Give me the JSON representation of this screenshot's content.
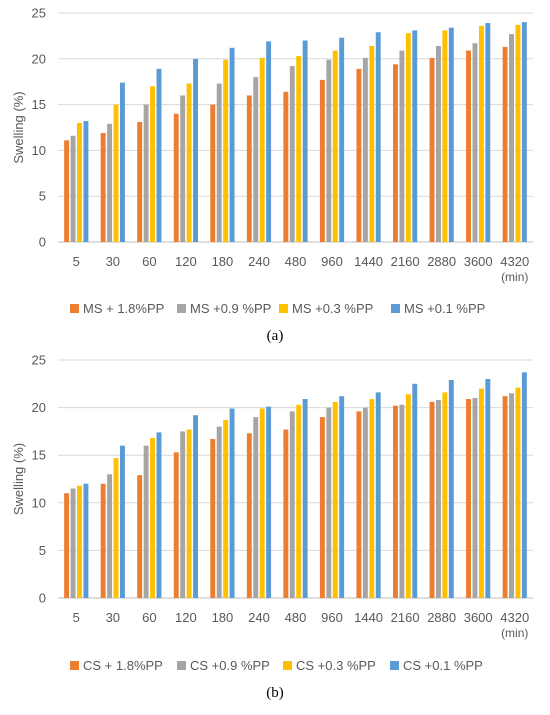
{
  "panels": [
    {
      "caption": "(a)",
      "chart_data": {
        "type": "bar",
        "ylabel": "Swelling (%)",
        "x_unit": "(min)",
        "ylim": [
          0,
          25
        ],
        "yticks": [
          0,
          5,
          10,
          15,
          20,
          25
        ],
        "grid": true,
        "legend_position": "bottom",
        "categories": [
          "5",
          "30",
          "60",
          "120",
          "180",
          "240",
          "480",
          "960",
          "1440",
          "2160",
          "2880",
          "3600",
          "4320"
        ],
        "series": [
          {
            "name": "MS + 1.8%PP",
            "color": "#ED7D31",
            "values": [
              11.1,
              11.9,
              13.1,
              14.0,
              15.0,
              16.0,
              16.4,
              17.7,
              18.9,
              19.4,
              20.1,
              20.9,
              21.3
            ]
          },
          {
            "name": "MS +0.9 %PP",
            "color": "#A5A5A5",
            "values": [
              11.6,
              12.9,
              15.0,
              16.0,
              17.3,
              18.0,
              19.2,
              19.9,
              20.1,
              20.9,
              21.4,
              21.7,
              22.7
            ]
          },
          {
            "name": "MS +0.3 %PP",
            "color": "#FFC000",
            "values": [
              13.0,
              15.0,
              17.0,
              17.3,
              19.9,
              20.1,
              20.3,
              20.9,
              21.4,
              22.8,
              23.1,
              23.6,
              23.7
            ]
          },
          {
            "name": "MS +0.1 %PP",
            "color": "#5B9BD5",
            "values": [
              13.2,
              17.4,
              18.9,
              20.0,
              21.2,
              21.9,
              22.0,
              22.3,
              22.9,
              23.1,
              23.4,
              23.9,
              24.0
            ]
          }
        ]
      }
    },
    {
      "caption": "(b)",
      "chart_data": {
        "type": "bar",
        "ylabel": "Swelling (%)",
        "x_unit": "(min)",
        "ylim": [
          0,
          25
        ],
        "yticks": [
          0,
          5,
          10,
          15,
          20,
          25
        ],
        "grid": true,
        "legend_position": "bottom",
        "categories": [
          "5",
          "30",
          "60",
          "120",
          "180",
          "240",
          "480",
          "960",
          "1440",
          "2160",
          "2880",
          "3600",
          "4320"
        ],
        "series": [
          {
            "name": "CS + 1.8%PP",
            "color": "#ED7D31",
            "values": [
              11.0,
              12.0,
              12.9,
              15.3,
              16.7,
              17.3,
              17.7,
              19.0,
              19.6,
              20.2,
              20.6,
              20.9,
              21.2
            ]
          },
          {
            "name": "CS +0.9 %PP",
            "color": "#A5A5A5",
            "values": [
              11.5,
              13.0,
              16.0,
              17.5,
              18.0,
              19.0,
              19.6,
              20.0,
              20.0,
              20.3,
              20.8,
              21.0,
              21.5
            ]
          },
          {
            "name": "CS +0.3 %PP",
            "color": "#FFC000",
            "values": [
              11.8,
              14.7,
              16.8,
              17.7,
              18.7,
              19.9,
              20.3,
              20.6,
              20.9,
              21.4,
              21.6,
              22.0,
              22.1
            ]
          },
          {
            "name": "CS +0.1 %PP",
            "color": "#5B9BD5",
            "values": [
              12.0,
              16.0,
              17.4,
              19.2,
              19.9,
              20.1,
              20.9,
              21.2,
              21.6,
              22.5,
              22.9,
              23.0,
              23.7
            ]
          }
        ]
      }
    }
  ]
}
